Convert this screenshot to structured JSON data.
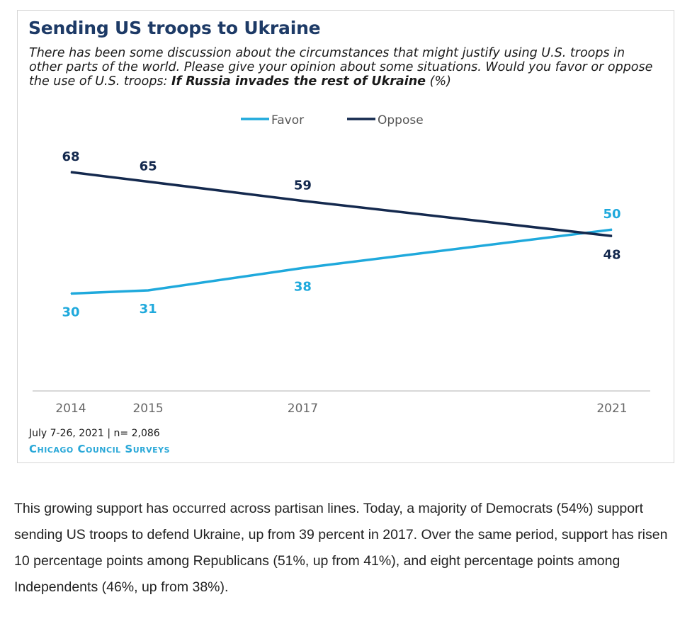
{
  "card": {
    "title": "Sending US troops to Ukraine",
    "subtitle_plain": "There has been some discussion about the circumstances that might justify using U.S. troops in other parts of the world. Please give your opinion about some situations. Would you favor or oppose the use of U.S. troops:",
    "subtitle_bold": "If Russia invades the rest of Ukraine",
    "subtitle_suffix": "(%)",
    "footer_date": "July 7-26, 2021 | n= 2,086",
    "footer_brand": "Chicago Council Surveys"
  },
  "chart_data": {
    "type": "line",
    "x": [
      2014,
      2015,
      2017,
      2021
    ],
    "x_tick_labels": [
      "2014",
      "2015",
      "2017",
      "2021"
    ],
    "series": [
      {
        "name": "Favor",
        "color": "#1fa9dc",
        "values": [
          30,
          31,
          38,
          50
        ]
      },
      {
        "name": "Oppose",
        "color": "#14294e",
        "values": [
          68,
          65,
          59,
          48
        ]
      }
    ],
    "title": "Sending US troops to Ukraine",
    "xlabel": "",
    "ylabel": "",
    "ylim": [
      0,
      80
    ],
    "grid": false,
    "legend": "top-center"
  },
  "article": {
    "text": "This growing support has occurred across partisan lines. Today, a majority of Democrats (54%) support sending US troops to defend Ukraine, up from 39 percent in 2017. Over the same period, support has risen 10 percentage points among Republicans (51%, up from 41%), and eight percentage points among Independents (46%, up from 38%)."
  }
}
